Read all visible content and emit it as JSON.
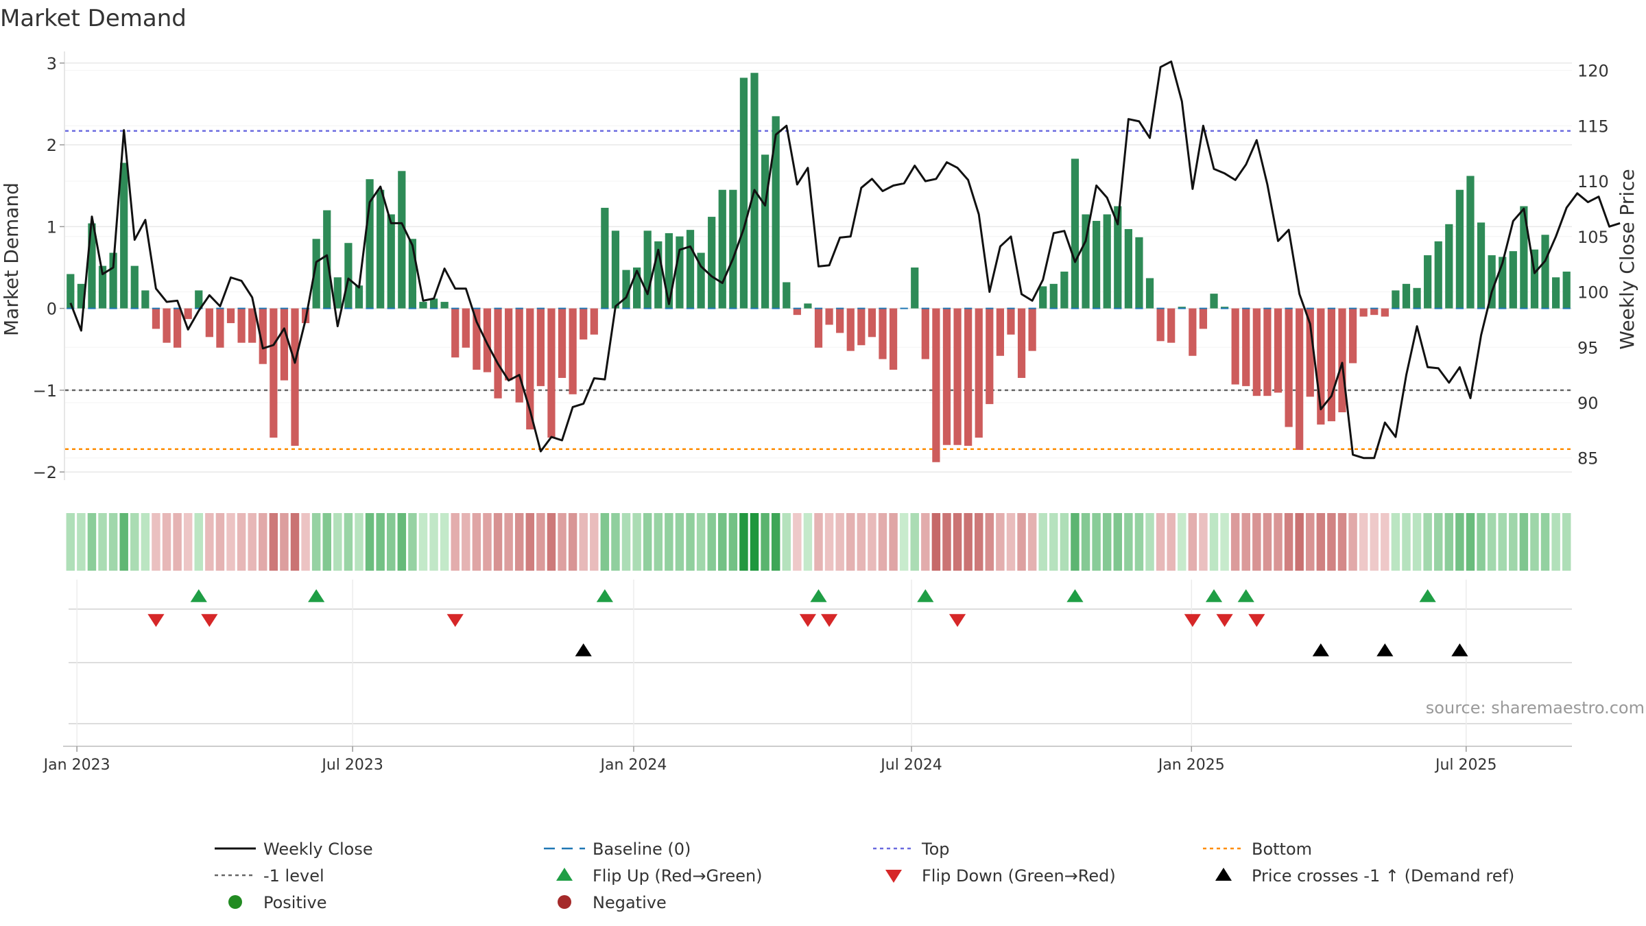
{
  "chart_data": {
    "type": "bar",
    "title": "Market Demand",
    "ylabel": "Market Demand",
    "y2label": "Weekly Close Price",
    "ylim": [
      -2.1,
      3.1
    ],
    "y2lim": [
      83,
      121.4
    ],
    "yticks": [
      -2,
      -1,
      0,
      1,
      2,
      3
    ],
    "ytick_labels": [
      "−2",
      "−1",
      "0",
      "1",
      "2",
      "3"
    ],
    "y2ticks": [
      85,
      90,
      95,
      100,
      105,
      110,
      115,
      120
    ],
    "ytick2_labels": [
      "85",
      "90",
      "95",
      "100",
      "105",
      "110",
      "115",
      "120"
    ],
    "x_start": "2023-01-02",
    "x_end": "2025-08-25",
    "xticks": [
      {
        "label": "Jan 2023",
        "week": 1.6
      },
      {
        "label": "Jul 2023",
        "week": 27.4
      },
      {
        "label": "Jan 2024",
        "week": 53.7
      },
      {
        "label": "Jul 2024",
        "week": 79.7
      },
      {
        "label": "Jan 2025",
        "week": 105.9
      },
      {
        "label": "Jul 2025",
        "week": 131.6
      }
    ],
    "levels": {
      "top": 2.17,
      "minus_one": -1.0,
      "bottom": -1.72,
      "baseline": 0
    },
    "demand": [
      0.42,
      0.3,
      1.04,
      0.52,
      0.68,
      1.78,
      0.52,
      0.22,
      -0.25,
      -0.42,
      -0.48,
      -0.13,
      0.22,
      -0.35,
      -0.48,
      -0.18,
      -0.42,
      -0.42,
      -0.68,
      -1.58,
      -0.88,
      -1.68,
      -0.18,
      0.85,
      1.2,
      0.38,
      0.8,
      0.28,
      1.58,
      1.45,
      1.15,
      1.68,
      0.85,
      0.08,
      0.12,
      0.08,
      -0.6,
      -0.48,
      -0.75,
      -0.78,
      -1.1,
      -0.88,
      -1.15,
      -1.48,
      -0.95,
      -1.58,
      -0.85,
      -1.05,
      -0.38,
      -0.32,
      1.23,
      0.95,
      0.47,
      0.5,
      0.95,
      0.82,
      0.92,
      0.88,
      0.96,
      0.68,
      1.12,
      1.45,
      1.45,
      2.82,
      2.88,
      1.88,
      2.35,
      0.32,
      -0.08,
      0.06,
      -0.48,
      -0.2,
      -0.3,
      -0.52,
      -0.45,
      -0.35,
      -0.62,
      -0.75,
      0.0,
      0.5,
      -0.62,
      -1.88,
      -1.67,
      -1.67,
      -1.68,
      -1.58,
      -1.17,
      -0.58,
      -0.32,
      -0.85,
      -0.52,
      0.27,
      0.3,
      0.45,
      1.83,
      1.15,
      1.07,
      1.15,
      1.25,
      0.97,
      0.87,
      0.37,
      -0.4,
      -0.42,
      0.02,
      -0.58,
      -0.25,
      0.18,
      0.02,
      -0.93,
      -0.95,
      -1.07,
      -1.07,
      -1.03,
      -1.45,
      -1.73,
      -1.08,
      -1.42,
      -1.38,
      -1.27,
      -0.67,
      -0.1,
      -0.08,
      -0.1,
      0.22,
      0.3,
      0.25,
      0.65,
      0.82,
      1.03,
      1.45,
      1.62,
      1.05,
      0.65,
      0.63,
      0.7,
      1.25,
      0.72,
      0.9,
      0.38,
      0.45
    ],
    "close": [
      99.0,
      96.5,
      106.8,
      101.6,
      102.2,
      114.6,
      104.7,
      106.5,
      100.3,
      99.1,
      99.2,
      96.6,
      98.3,
      99.7,
      98.7,
      101.3,
      101.0,
      99.5,
      94.9,
      95.2,
      96.7,
      93.6,
      97.5,
      102.7,
      103.3,
      96.9,
      101.2,
      100.4,
      108.1,
      109.5,
      106.2,
      106.2,
      104.2,
      99.2,
      99.4,
      102.1,
      100.3,
      100.3,
      97.3,
      95.3,
      93.5,
      92.0,
      92.5,
      89.3,
      85.6,
      86.9,
      86.6,
      89.6,
      89.9,
      92.2,
      92.1,
      98.7,
      99.5,
      101.9,
      99.8,
      103.8,
      98.9,
      103.8,
      104.1,
      102.3,
      101.4,
      100.8,
      103.0,
      105.7,
      109.2,
      107.8,
      114.2,
      115.0,
      109.7,
      111.2,
      102.3,
      102.4,
      104.9,
      105.0,
      109.4,
      110.2,
      109.1,
      109.6,
      109.8,
      111.4,
      110.0,
      110.2,
      111.7,
      111.2,
      110.1,
      107.0,
      100.0,
      104.1,
      105.0,
      99.8,
      99.2,
      101.1,
      105.3,
      105.5,
      102.7,
      104.6,
      109.6,
      108.5,
      106.1,
      115.6,
      115.4,
      113.9,
      120.3,
      120.8,
      117.2,
      109.3,
      115.0,
      111.1,
      110.7,
      110.1,
      111.5,
      113.7,
      109.7,
      104.6,
      105.6,
      99.8,
      97.1,
      89.4,
      90.6,
      93.6,
      85.3,
      85.0,
      85.0,
      88.2,
      86.9,
      92.5,
      96.9,
      93.2,
      93.1,
      91.8,
      93.2,
      90.4,
      96.1,
      100.0,
      102.6,
      106.4,
      107.5,
      101.7,
      102.8,
      105.0,
      107.6,
      108.9,
      108.1,
      108.6,
      105.9,
      106.2
    ],
    "flip_up_weeks": [
      12,
      23,
      50,
      70,
      80,
      94,
      107,
      110,
      127
    ],
    "flip_down_weeks": [
      8,
      13,
      36,
      69,
      71,
      83,
      105,
      108,
      111
    ],
    "price_cross_weeks": [
      48,
      117,
      123,
      130
    ],
    "source": "source: sharemaestro.com",
    "legend": [
      {
        "key": "weekly_close",
        "label": "Weekly Close"
      },
      {
        "key": "baseline",
        "label": "Baseline (0)"
      },
      {
        "key": "top",
        "label": "Top"
      },
      {
        "key": "bottom",
        "label": "Bottom"
      },
      {
        "key": "minus_one",
        "label": "-1 level"
      },
      {
        "key": "flip_up",
        "label": "Flip Up (Red→Green)"
      },
      {
        "key": "flip_down",
        "label": "Flip Down (Green→Red)"
      },
      {
        "key": "price_cross",
        "label": "Price crosses -1 ↑ (Demand ref)"
      },
      {
        "key": "positive",
        "label": "Positive"
      },
      {
        "key": "negative",
        "label": "Negative"
      }
    ],
    "colors": {
      "positive_bar": "#2e8b57",
      "negative_bar": "#cd5c5c",
      "close_line": "#111111",
      "baseline": "#1f77b4",
      "top": "#6a6adf",
      "bottom": "#ff8c00",
      "minus_one": "#666666",
      "flip_up": "#1f9e45",
      "flip_down": "#d62728",
      "price_cross": "#000000",
      "positive_dot": "#228b22",
      "negative_dot": "#a52a2a",
      "grid": "#e8e8e8",
      "axis_text": "#333333"
    }
  }
}
